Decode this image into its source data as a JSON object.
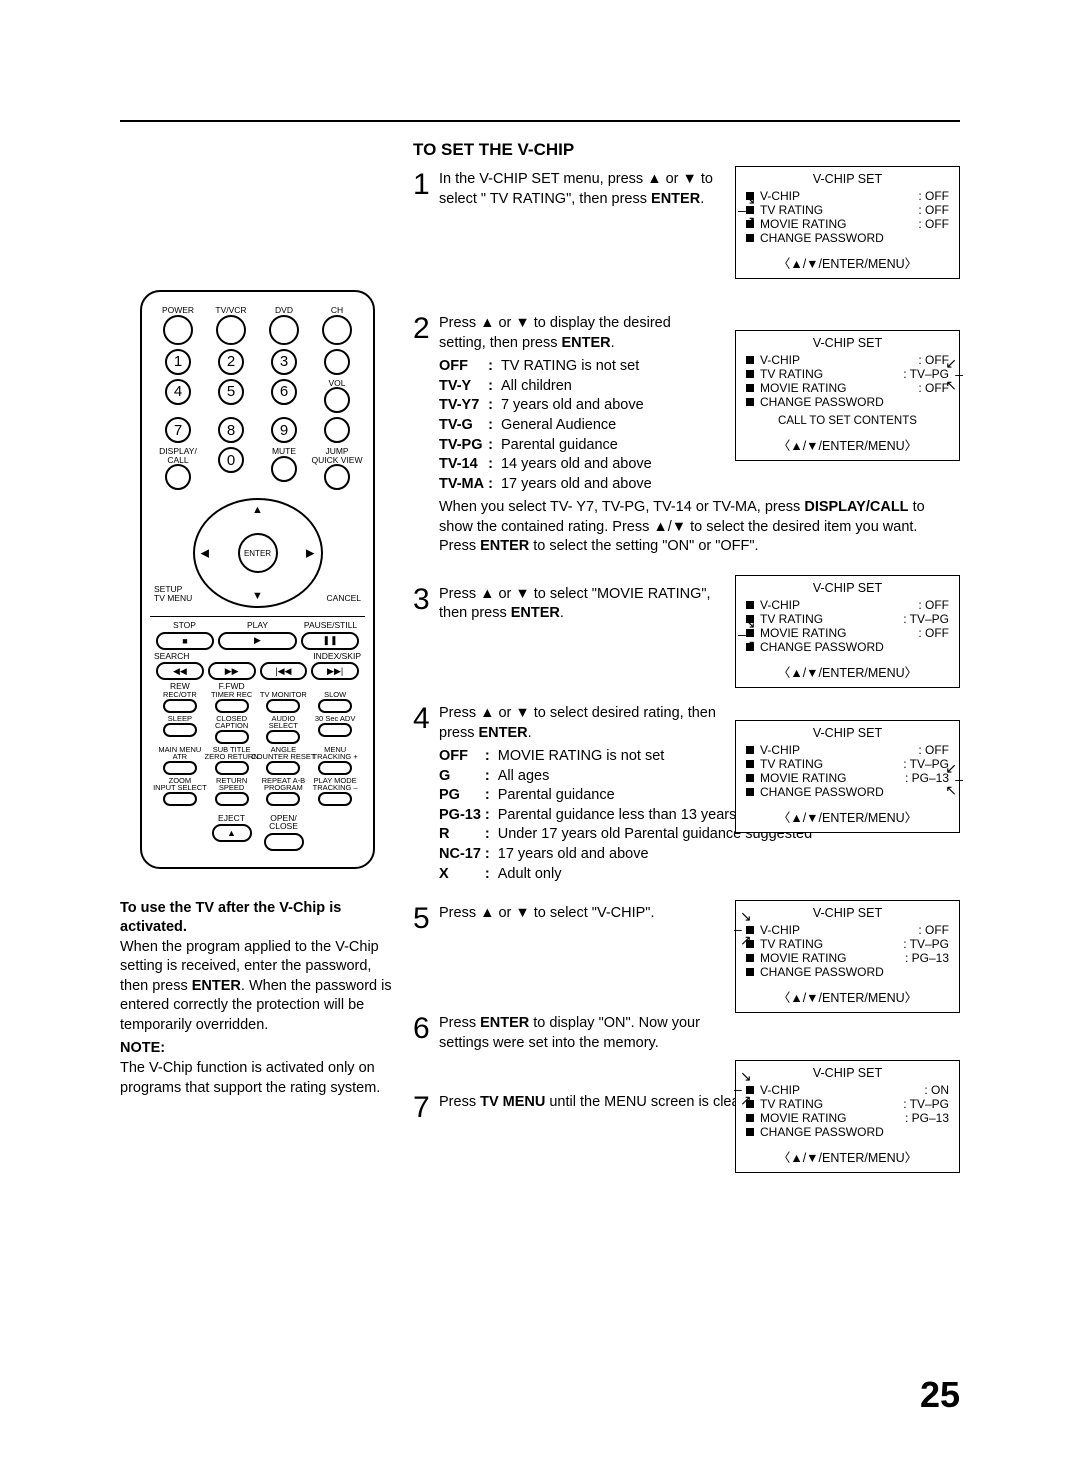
{
  "page_number": "25",
  "section_title": "TO SET THE V-CHIP",
  "left_note": {
    "heading": "To use the TV after the V-Chip is activated.",
    "body": "When the program applied to the V-Chip setting is received, enter the password, then press ENTER. When the password is entered correctly the protection will be temporarily overridden.",
    "note_label": "NOTE:",
    "note_body": "The V-Chip function is activated only on programs that support the rating system."
  },
  "remote": {
    "power": "POWER",
    "top": [
      "TV/VCR",
      "DVD",
      "CH"
    ],
    "vol": "VOL",
    "mute": "MUTE",
    "display_call": "DISPLAY/\nCALL",
    "jump": "JUMP\nQUICK VIEW",
    "enter": "ENTER",
    "setup": "SETUP\nTV MENU",
    "cancel": "CANCEL",
    "transport": {
      "stop": "STOP",
      "play": "PLAY",
      "pause": "PAUSE/STILL"
    },
    "search": "SEARCH",
    "rew": "REW",
    "ffwd": "F.FWD",
    "index": "INDEX/SKIP",
    "row_a": [
      "REC/OTR",
      "TIMER REC",
      "TV MONITOR",
      "SLOW"
    ],
    "row_b": [
      "SLEEP",
      "CLOSED\nCAPTION",
      "AUDIO\nSELECT",
      "30 Sec ADV"
    ],
    "row_c": [
      "MAIN MENU\nATR",
      "SUB TITLE\nZERO RETURN",
      "ANGLE\nCOUNTER RESET",
      "MENU\nTRACKING +"
    ],
    "row_d": [
      "ZOOM\nINPUT SELECT",
      "RETURN\nSPEED",
      "REPEAT A-B\nPROGRAM",
      "PLAY MODE\nTRACKING –"
    ],
    "eject": "EJECT",
    "open": "OPEN/\nCLOSE"
  },
  "steps": [
    {
      "n": "1",
      "text": "In the V-CHIP SET menu, press ▲ or ▼ to select \" TV RATING\", then press ENTER.",
      "osd": {
        "title": "V-CHIP SET",
        "rows": [
          {
            "label": "V-CHIP",
            "val": "OFF"
          },
          {
            "label": "TV RATING",
            "val": "OFF"
          },
          {
            "label": "MOVIE RATING",
            "val": "OFF"
          },
          {
            "label": "CHANGE PASSWORD",
            "val": ""
          }
        ],
        "hint": "〈▲/▼/ENTER/MENU〉",
        "sel": 1,
        "showSel": true
      }
    },
    {
      "n": "2",
      "text": "Press ▲ or ▼ to display the desired setting, then press ENTER.",
      "defs": [
        {
          "k": "OFF",
          "v": "TV RATING is not set"
        },
        {
          "k": "TV-Y",
          "v": "All children"
        },
        {
          "k": "TV-Y7",
          "v": "7 years old and above"
        },
        {
          "k": "TV-G",
          "v": "General Audience"
        },
        {
          "k": "TV-PG",
          "v": "Parental guidance"
        },
        {
          "k": "TV-14",
          "v": "14 years old and above"
        },
        {
          "k": "TV-MA",
          "v": "17 years old and above"
        }
      ],
      "after": "When you select TV- Y7, TV-PG, TV-14 or TV-MA, press DISPLAY/CALL to show the contained rating. Press ▲/▼ to select the desired item you want. Press ENTER to select the setting \"ON\" or \"OFF\".",
      "osd": {
        "title": "V-CHIP SET",
        "rows": [
          {
            "label": "V-CHIP",
            "val": "OFF"
          },
          {
            "label": "TV RATING",
            "val": "TV–PG"
          },
          {
            "label": "MOVIE RATING",
            "val": "OFF"
          },
          {
            "label": "CHANGE PASSWORD",
            "val": ""
          }
        ],
        "call": "CALL TO SET CONTENTS",
        "hint": "〈▲/▼/ENTER/MENU〉",
        "valArrows": 1
      }
    },
    {
      "n": "3",
      "text": "Press ▲ or ▼ to select \"MOVIE RATING\", then press ENTER.",
      "osd": {
        "title": "V-CHIP SET",
        "rows": [
          {
            "label": "V-CHIP",
            "val": "OFF"
          },
          {
            "label": "TV RATING",
            "val": "TV–PG"
          },
          {
            "label": "MOVIE RATING",
            "val": "OFF"
          },
          {
            "label": "CHANGE PASSWORD",
            "val": ""
          }
        ],
        "hint": "〈▲/▼/ENTER/MENU〉",
        "sel": 2,
        "showSel": true
      }
    },
    {
      "n": "4",
      "text": "Press ▲ or ▼ to select desired rating, then press ENTER.",
      "defs": [
        {
          "k": "OFF",
          "v": "MOVIE RATING is not set"
        },
        {
          "k": "G",
          "v": "All ages"
        },
        {
          "k": "PG",
          "v": "Parental guidance"
        },
        {
          "k": "PG-13",
          "v": "Parental guidance less than 13 years old"
        },
        {
          "k": "R",
          "v": "Under 17 years old Parental guidance suggested"
        },
        {
          "k": "NC-17",
          "v": "17 years old and above"
        },
        {
          "k": "X",
          "v": "Adult only"
        }
      ],
      "osd": {
        "title": "V-CHIP SET",
        "rows": [
          {
            "label": "V-CHIP",
            "val": "OFF"
          },
          {
            "label": "TV RATING",
            "val": "TV–PG"
          },
          {
            "label": "MOVIE RATING",
            "val": "PG–13"
          },
          {
            "label": "CHANGE PASSWORD",
            "val": ""
          }
        ],
        "hint": "〈▲/▼/ENTER/MENU〉",
        "valArrows": 2
      }
    },
    {
      "n": "5",
      "text": "Press ▲ or ▼ to select \"V-CHIP\".",
      "osd": {
        "title": "V-CHIP SET",
        "rows": [
          {
            "label": "V-CHIP",
            "val": "OFF"
          },
          {
            "label": "TV RATING",
            "val": "TV–PG"
          },
          {
            "label": "MOVIE RATING",
            "val": "PG–13"
          },
          {
            "label": "CHANGE PASSWORD",
            "val": ""
          }
        ],
        "hint": "〈▲/▼/ENTER/MENU〉",
        "sel": 0,
        "showSel": true,
        "selDiag": true
      }
    },
    {
      "n": "6",
      "text": "Press ENTER to display \"ON\". Now your settings were set into the memory.",
      "osd": {
        "title": "V-CHIP SET",
        "rows": [
          {
            "label": "V-CHIP",
            "val": "ON"
          },
          {
            "label": "TV RATING",
            "val": "TV–PG"
          },
          {
            "label": "MOVIE RATING",
            "val": "PG–13"
          },
          {
            "label": "CHANGE PASSWORD",
            "val": ""
          }
        ],
        "hint": "〈▲/▼/ENTER/MENU〉",
        "sel": 0,
        "showSel": true,
        "selDiag": true
      }
    },
    {
      "n": "7",
      "text": "Press TV MENU until the MENU screen is cleared."
    }
  ]
}
